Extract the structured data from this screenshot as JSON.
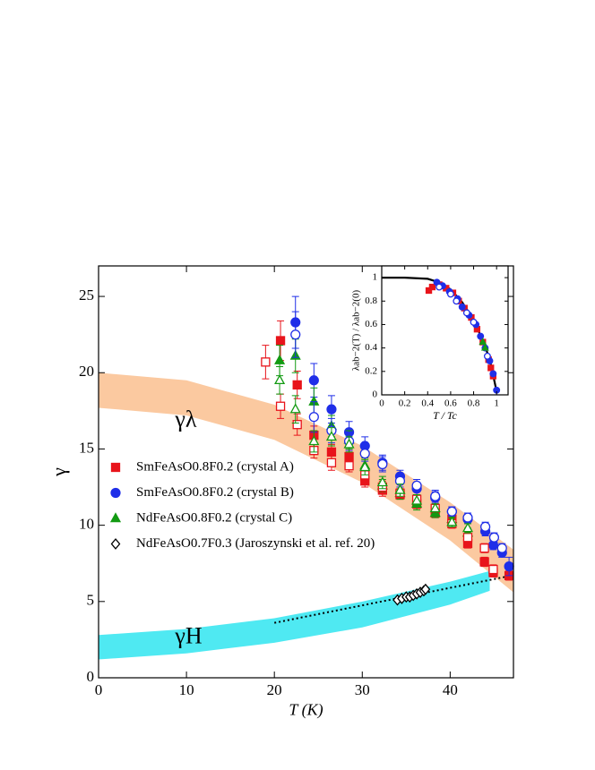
{
  "chart_data": [
    {
      "type": "scatter",
      "xlabel": "T (K)",
      "ylabel": "γ",
      "xlim": [
        0,
        47.2
      ],
      "ylim": [
        0,
        27
      ],
      "xticks": [
        0,
        10,
        20,
        30,
        40
      ],
      "yticks": [
        0,
        5,
        10,
        15,
        20,
        25
      ],
      "bands": [
        {
          "label": "γλ",
          "color": "#fbc9a0",
          "x": [
            0,
            10,
            20,
            30,
            40,
            47.2
          ],
          "lower": [
            17.7,
            17.2,
            15.6,
            12.8,
            9.0,
            5.6
          ],
          "upper": [
            20.0,
            19.5,
            17.9,
            15.2,
            11.5,
            8.4
          ]
        },
        {
          "label": "γH",
          "color": "#4fe9f2",
          "x": [
            0,
            10,
            20,
            30,
            40,
            44.5
          ],
          "lower": [
            1.2,
            1.6,
            2.3,
            3.3,
            4.8,
            5.7
          ],
          "upper": [
            2.8,
            3.2,
            3.9,
            5.0,
            6.3,
            7.0
          ]
        }
      ],
      "lines": [
        {
          "style": "dotted",
          "color": "#000000",
          "x": [
            20,
            47
          ],
          "values": [
            3.6,
            6.7
          ]
        }
      ],
      "series": [
        {
          "name": "SmFeAsO0.8F0.2 (crystal A)",
          "color": "#e8141b",
          "marker": "square",
          "filled": true,
          "x": [
            20.7,
            22.6,
            24.5,
            26.5,
            28.5,
            30.3,
            32.3,
            34.3,
            36.2,
            38.3,
            40.2,
            42.0,
            43.9,
            44.9,
            46.7
          ],
          "values": [
            22.1,
            19.2,
            15.9,
            14.8,
            14.5,
            12.9,
            12.3,
            12.0,
            11.4,
            10.8,
            10.4,
            8.8,
            7.6,
            6.9,
            6.7
          ],
          "errors": [
            1.3,
            0.9,
            0.6,
            0.5,
            0.5,
            0.4,
            0.4,
            0.3,
            0.3,
            0.3,
            0.3,
            0.3,
            0.3,
            0.3,
            0.3
          ]
        },
        {
          "name": "SmFeAsO0.8F0.2 (crystal B)",
          "color": "#1f2ee8",
          "marker": "circle",
          "filled": true,
          "x": [
            22.4,
            24.5,
            26.5,
            28.5,
            30.3,
            32.3,
            34.3,
            36.2,
            38.3,
            40.2,
            42.0,
            44.0,
            44.9,
            45.9,
            46.7
          ],
          "values": [
            23.3,
            19.5,
            17.6,
            16.1,
            15.2,
            14.1,
            13.2,
            12.4,
            11.8,
            10.9,
            10.4,
            9.6,
            8.7,
            8.2,
            7.3
          ],
          "errors": [
            1.7,
            1.1,
            0.9,
            0.7,
            0.6,
            0.5,
            0.4,
            0.4,
            0.4,
            0.3,
            0.3,
            0.3,
            0.3,
            0.3,
            0.6
          ]
        },
        {
          "name": "NdFeAsO0.8F0.2 (crystal C)",
          "color": "#129a12",
          "marker": "triangle",
          "filled": true,
          "x": [
            20.6,
            22.4,
            24.5,
            26.5,
            28.5,
            30.3,
            32.3,
            34.3,
            36.2,
            38.3,
            40.2,
            42.0
          ],
          "values": [
            20.8,
            21.1,
            18.1,
            16.5,
            15.6,
            13.9,
            12.6,
            12.1,
            11.4,
            10.8,
            10.4,
            9.5
          ],
          "errors": [
            1.0,
            1.1,
            0.9,
            0.7,
            0.6,
            0.5,
            0.4,
            0.4,
            0.4,
            0.3,
            0.3,
            0.3
          ]
        },
        {
          "name": "NdFeAsO0.7F0.3 (Jaroszynski et al. ref. 20)",
          "color": "#000000",
          "marker": "diamond",
          "filled": false,
          "x": [
            34.0,
            34.5,
            35.0,
            35.4,
            35.8,
            36.2,
            36.6,
            37.0,
            37.2
          ],
          "values": [
            5.1,
            5.2,
            5.3,
            5.3,
            5.4,
            5.5,
            5.6,
            5.7,
            5.8
          ]
        },
        {
          "color": "#e8141b",
          "marker": "square",
          "filled": false,
          "x": [
            19.0,
            20.7,
            22.6,
            24.5,
            26.5,
            28.5,
            30.3,
            32.3,
            34.3,
            36.2,
            38.3,
            40.2,
            42.0,
            43.9,
            44.9
          ],
          "values": [
            20.7,
            17.8,
            16.6,
            14.9,
            14.1,
            13.9,
            13.3,
            12.5,
            12.1,
            11.7,
            11.1,
            10.1,
            9.2,
            8.5,
            7.1
          ],
          "errors": [
            1.1,
            0.8,
            0.7,
            0.5,
            0.5,
            0.4,
            0.4,
            0.4,
            0.3,
            0.3,
            0.3,
            0.3,
            0.3,
            0.3,
            0.3
          ]
        },
        {
          "color": "#1f2ee8",
          "marker": "circle",
          "filled": false,
          "x": [
            22.4,
            24.5,
            26.5,
            28.5,
            30.3,
            32.3,
            34.3,
            36.2,
            38.3,
            40.2,
            42.0,
            44.0,
            45.0,
            45.9
          ],
          "values": [
            22.5,
            17.1,
            16.2,
            15.5,
            14.7,
            14.0,
            12.9,
            12.6,
            11.9,
            10.9,
            10.5,
            9.9,
            9.2,
            8.5
          ],
          "errors": [
            1.5,
            1.0,
            0.8,
            0.6,
            0.5,
            0.5,
            0.4,
            0.4,
            0.4,
            0.3,
            0.3,
            0.3,
            0.3,
            0.3
          ]
        },
        {
          "color": "#129a12",
          "marker": "triangle",
          "filled": false,
          "x": [
            20.6,
            22.4,
            24.5,
            26.5,
            28.5,
            30.3,
            32.3,
            34.3,
            36.2,
            38.3,
            40.2,
            42.0
          ],
          "values": [
            19.5,
            17.6,
            15.5,
            15.8,
            15.3,
            13.8,
            12.8,
            12.3,
            11.6,
            11.1,
            10.2,
            9.8
          ],
          "errors": [
            0.9,
            0.9,
            0.7,
            0.6,
            0.5,
            0.5,
            0.4,
            0.4,
            0.4,
            0.3,
            0.3,
            0.3
          ]
        }
      ]
    },
    {
      "type": "scatter",
      "xlabel": "T / Tc",
      "ylabel": "λab−2(T) / λab−2(0)",
      "xlim": [
        0,
        1.1
      ],
      "ylim": [
        0,
        1.1
      ],
      "xticks": [
        0,
        0.2,
        0.4,
        0.6,
        0.8,
        1
      ],
      "yticks": [
        0,
        0.2,
        0.4,
        0.6,
        0.8,
        1
      ],
      "lines": [
        {
          "style": "solid",
          "color": "#000000",
          "x": [
            0,
            0.2,
            0.4,
            0.5,
            0.6,
            0.7,
            0.8,
            0.9,
            0.95,
            1.0
          ],
          "values": [
            1,
            1,
            0.99,
            0.96,
            0.9,
            0.79,
            0.64,
            0.42,
            0.26,
            0.03
          ]
        }
      ],
      "series": [
        {
          "color": "#e8141b",
          "marker": "square",
          "filled": true,
          "x": [
            0.41,
            0.44,
            0.5,
            0.56,
            0.62,
            0.67,
            0.72,
            0.78,
            0.83,
            0.88,
            0.93,
            0.95,
            0.97
          ],
          "values": [
            0.89,
            0.92,
            0.94,
            0.91,
            0.87,
            0.8,
            0.74,
            0.66,
            0.56,
            0.45,
            0.3,
            0.23,
            0.16
          ]
        },
        {
          "color": "#1f2ee8",
          "marker": "circle",
          "filled": true,
          "x": [
            0.48,
            0.53,
            0.59,
            0.66,
            0.7,
            0.76,
            0.82,
            0.86,
            0.9,
            0.94,
            0.97,
            1.0
          ],
          "values": [
            0.96,
            0.93,
            0.88,
            0.82,
            0.75,
            0.68,
            0.6,
            0.5,
            0.4,
            0.29,
            0.18,
            0.04
          ]
        },
        {
          "color": "#1f2ee8",
          "marker": "circle",
          "filled": false,
          "x": [
            0.5,
            0.6,
            0.65,
            0.74,
            0.8,
            0.92
          ],
          "values": [
            0.92,
            0.86,
            0.8,
            0.7,
            0.62,
            0.33
          ]
        },
        {
          "color": "#129a12",
          "marker": "triangle",
          "filled": true,
          "x": [
            0.88,
            0.9
          ],
          "values": [
            0.45,
            0.4
          ]
        }
      ]
    }
  ]
}
